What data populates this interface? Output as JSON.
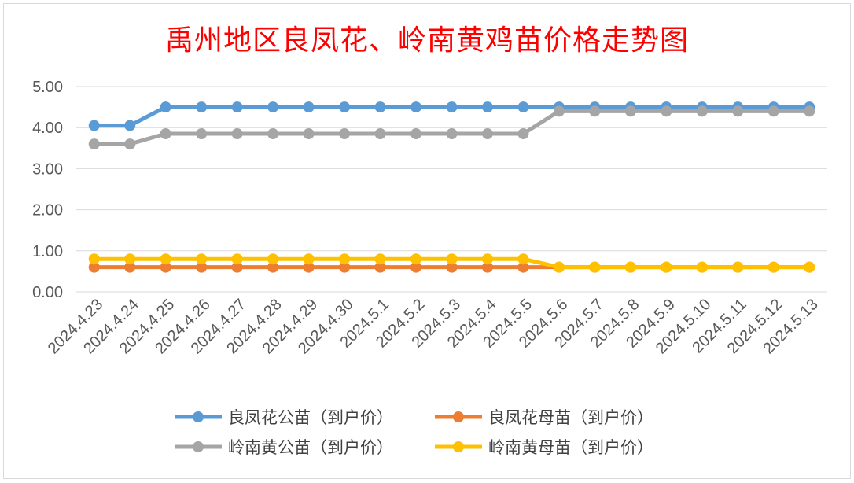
{
  "chart_data": {
    "type": "line",
    "title": "禹州地区良凤花、岭南黄鸡苗价格走势图",
    "categories": [
      "2024.4.23",
      "2024.4.24",
      "2024.4.25",
      "2024.4.26",
      "2024.4.27",
      "2024.4.28",
      "2024.4.29",
      "2024.4.30",
      "2024.5.1",
      "2024.5.2",
      "2024.5.3",
      "2024.5.4",
      "2024.5.5",
      "2024.5.6",
      "2024.5.7",
      "2024.5.8",
      "2024.5.9",
      "2024.5.10",
      "2024.5.11",
      "2024.5.12",
      "2024.5.13"
    ],
    "ylim": [
      0,
      5
    ],
    "yticks": [
      "0.00",
      "1.00",
      "2.00",
      "3.00",
      "4.00",
      "5.00"
    ],
    "grid": true,
    "legend_position": "bottom",
    "series": [
      {
        "name": "良凤花公苗（到户价）",
        "color": "#5b9bd5",
        "values": [
          4.05,
          4.05,
          4.5,
          4.5,
          4.5,
          4.5,
          4.5,
          4.5,
          4.5,
          4.5,
          4.5,
          4.5,
          4.5,
          4.5,
          4.5,
          4.5,
          4.5,
          4.5,
          4.5,
          4.5,
          4.5
        ]
      },
      {
        "name": "良凤花母苗（到户价）",
        "color": "#ed7d31",
        "values": [
          0.6,
          0.6,
          0.6,
          0.6,
          0.6,
          0.6,
          0.6,
          0.6,
          0.6,
          0.6,
          0.6,
          0.6,
          0.6,
          0.6,
          0.6,
          0.6,
          0.6,
          0.6,
          0.6,
          0.6,
          0.6
        ]
      },
      {
        "name": "岭南黄公苗（到户价）",
        "color": "#a5a5a5",
        "values": [
          3.6,
          3.6,
          3.85,
          3.85,
          3.85,
          3.85,
          3.85,
          3.85,
          3.85,
          3.85,
          3.85,
          3.85,
          3.85,
          4.4,
          4.4,
          4.4,
          4.4,
          4.4,
          4.4,
          4.4,
          4.4
        ]
      },
      {
        "name": "岭南黄母苗（到户价）",
        "color": "#ffc000",
        "values": [
          0.8,
          0.8,
          0.8,
          0.8,
          0.8,
          0.8,
          0.8,
          0.8,
          0.8,
          0.8,
          0.8,
          0.8,
          0.8,
          0.6,
          0.6,
          0.6,
          0.6,
          0.6,
          0.6,
          0.6,
          0.6
        ]
      }
    ]
  }
}
